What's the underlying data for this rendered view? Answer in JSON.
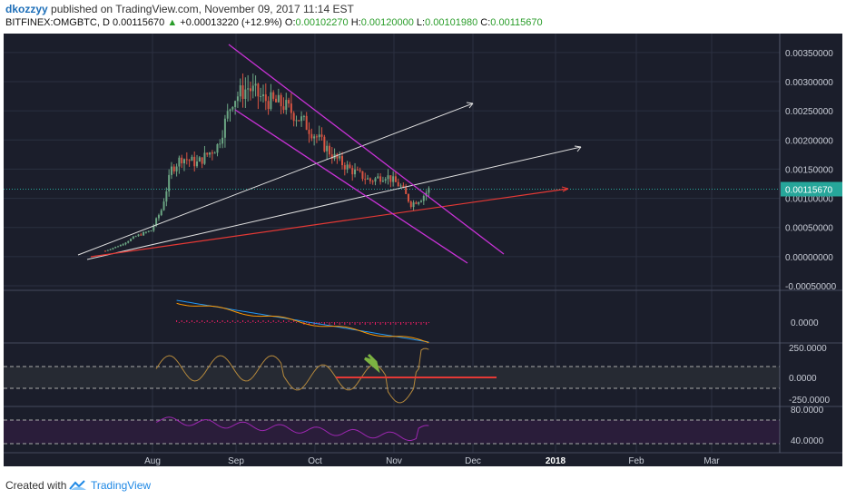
{
  "header": {
    "author": "dkozzyy",
    "published": "published on TradingView.com, November 09, 2017 11:14 EST",
    "symbol": "BITFINEX:OMGBTC, D",
    "last": "0.00115670",
    "change": "+0.00013220 (+12.9%)",
    "open_label": "O:",
    "open": "0.00102270",
    "high_label": "H:",
    "high": "0.00120000",
    "low_label": "L:",
    "low": "0.00101980",
    "close_label": "C:",
    "close": "0.00115670"
  },
  "footer": {
    "created": "Created with",
    "brand": "TradingView"
  },
  "chart_data": {
    "type": "candlestick",
    "x_tick_labels": [
      "Aug",
      "Sep",
      "Oct",
      "Nov",
      "Dec",
      "2018",
      "Feb",
      "Mar"
    ],
    "price_axis": {
      "ticks": [
        "0.00350000",
        "0.00300000",
        "0.00250000",
        "0.00200000",
        "0.00150000",
        "0.00100000",
        "0.00050000",
        "0.00000000",
        "-0.00050000"
      ],
      "current_price_label": "0.00115670",
      "ylim": [
        -0.0005,
        0.0037
      ]
    },
    "macd_axis": {
      "ticks": [
        "0.0000"
      ]
    },
    "cci_axis": {
      "ticks": [
        "250.0000",
        "0.0000",
        "-250.0000"
      ]
    },
    "rsi_axis": {
      "ticks": [
        "80.0000",
        "40.0000"
      ]
    },
    "colors": {
      "background": "#1b1e2b",
      "up_candle": "#6ba583",
      "down_candle": "#d75442",
      "trend_white": "#e0e0e0",
      "trend_red": "#e53935",
      "channel_magenta": "#c832d6",
      "rsi": "#9c27b0",
      "cci": "#b5893c",
      "macd": "#2196f3",
      "signal": "#ff9800"
    }
  }
}
